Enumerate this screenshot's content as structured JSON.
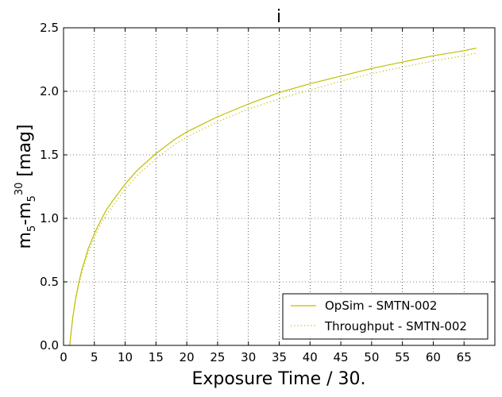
{
  "chart_data": {
    "type": "line",
    "title": "i",
    "xlabel": "Exposure Time / 30.",
    "ylabel": {
      "base": "m",
      "sub1": "5",
      "dash": "-m",
      "sub2": "5",
      "sup2": "30",
      "unit": " [mag]"
    },
    "xlim": [
      0,
      70
    ],
    "ylim": [
      0.0,
      2.5
    ],
    "xticks": [
      0,
      5,
      10,
      15,
      20,
      25,
      30,
      35,
      40,
      45,
      50,
      55,
      60,
      65
    ],
    "yticks": [
      "0.0",
      "0.5",
      "1.0",
      "1.5",
      "2.0",
      "2.5"
    ],
    "grid": true,
    "legend_position": "lower-right",
    "colors": {
      "series": "#bfbf00"
    },
    "series": [
      {
        "name": "OpSim - SMTN-002",
        "style": "solid",
        "x": [
          1,
          1.5,
          2,
          2.5,
          3,
          4,
          5,
          6,
          7,
          8,
          10,
          12,
          15,
          18,
          20,
          25,
          30,
          35,
          40,
          45,
          50,
          55,
          60,
          65,
          67
        ],
        "y": [
          0.0,
          0.22,
          0.38,
          0.5,
          0.6,
          0.76,
          0.88,
          0.98,
          1.07,
          1.14,
          1.27,
          1.38,
          1.51,
          1.62,
          1.68,
          1.8,
          1.9,
          1.99,
          2.06,
          2.12,
          2.18,
          2.23,
          2.28,
          2.32,
          2.34
        ]
      },
      {
        "name": "Throughput - SMTN-002",
        "style": "dotted",
        "x": [
          1,
          1.5,
          2,
          2.5,
          3,
          4,
          5,
          6,
          7,
          8,
          10,
          12,
          15,
          18,
          20,
          25,
          30,
          35,
          40,
          45,
          50,
          55,
          60,
          65,
          67
        ],
        "y": [
          0.0,
          0.22,
          0.37,
          0.48,
          0.58,
          0.73,
          0.85,
          0.95,
          1.03,
          1.1,
          1.23,
          1.34,
          1.47,
          1.58,
          1.64,
          1.76,
          1.86,
          1.94,
          2.01,
          2.08,
          2.14,
          2.19,
          2.24,
          2.28,
          2.3
        ]
      }
    ]
  }
}
